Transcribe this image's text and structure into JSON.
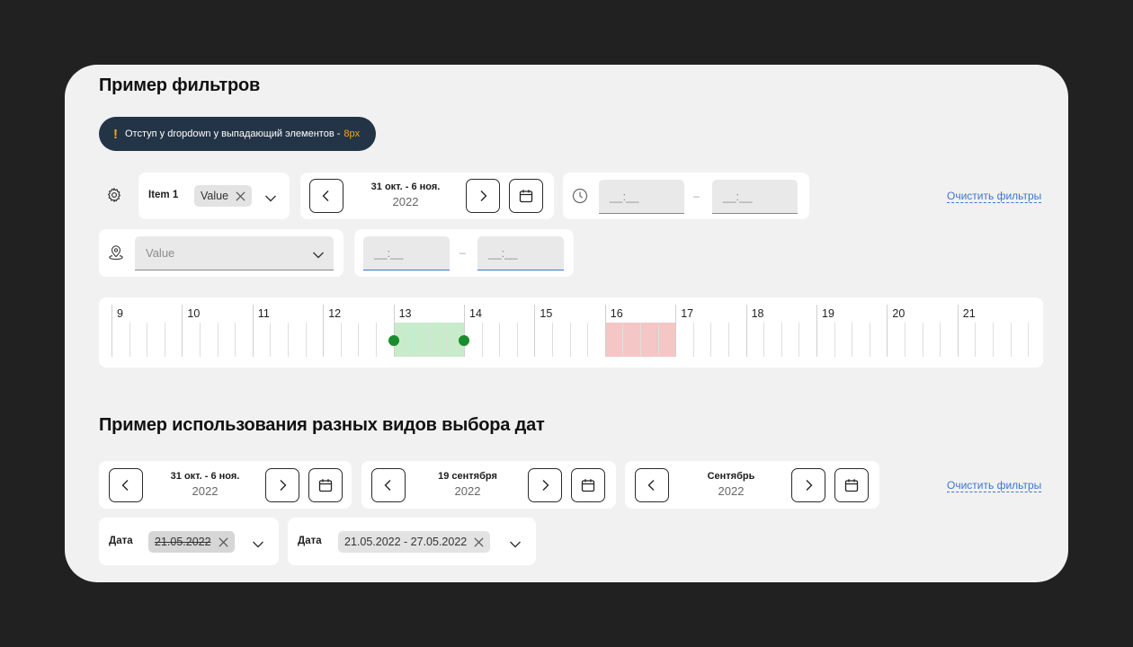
{
  "section1": {
    "title": "Пример фильтров",
    "notice": {
      "text": "Отступ у dropdown у выпадающий элементов -",
      "accent": "8px"
    },
    "filter_item": {
      "label": "Item 1",
      "chip": "Value"
    },
    "date_range": {
      "line1": "31 окт. - 6 ноя.",
      "line2": "2022"
    },
    "time_range": {
      "from": "__:__",
      "to": "__:__",
      "separator": "–"
    },
    "clear_link": "Очистить фильтры",
    "location_select": {
      "placeholder": "Value"
    },
    "time_range2": {
      "from": "__:__",
      "to": "__:__",
      "separator": "–"
    }
  },
  "timeline": {
    "hours": [
      "9",
      "10",
      "11",
      "12",
      "13",
      "14",
      "15",
      "16",
      "17",
      "18",
      "19",
      "20",
      "21"
    ],
    "ticks_per_hour": 4,
    "selected": {
      "start_hour": 13,
      "end_hour": 14,
      "color": "#c8ebcc",
      "handle_color": "#1c8b2e"
    },
    "busy": {
      "start_hour": 16,
      "end_hour": 17,
      "color": "#f4c6c6"
    }
  },
  "section2": {
    "title": "Пример использования разных видов выбора дат",
    "pickers": [
      {
        "line1": "31 окт. - 6 ноя.",
        "line2": "2022"
      },
      {
        "line1": "19 сентября",
        "line2": "2022"
      },
      {
        "line1": "Сентябрь",
        "line2": "2022"
      }
    ],
    "clear_link": "Очистить фильтры",
    "date_filters": [
      {
        "label": "Дата",
        "value": "21.05.2022"
      },
      {
        "label": "Дата",
        "value": "21.05.2022 - 27.05.2022"
      }
    ]
  },
  "colors": {
    "background": "#212121",
    "panel": "#f1f1f1",
    "notice": "#243447",
    "accent": "#f5a623",
    "link": "#3d76d1"
  }
}
